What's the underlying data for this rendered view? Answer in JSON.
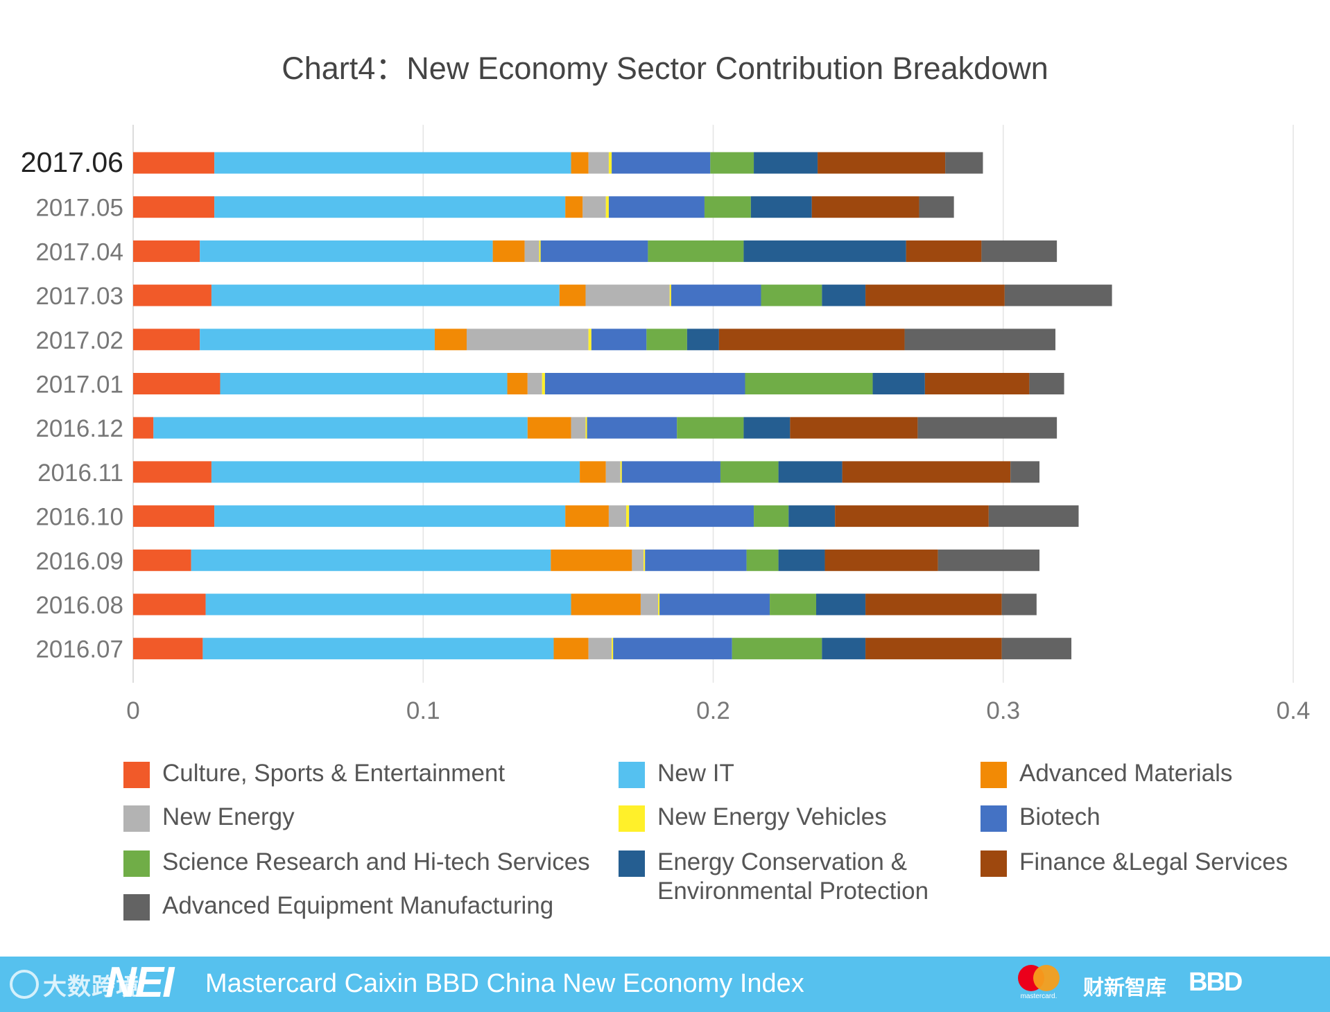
{
  "chart_data": {
    "type": "bar",
    "orientation": "horizontal",
    "stacked": true,
    "title": "Chart4：New Economy Sector Contribution Breakdown",
    "xlabel": "",
    "ylabel": "",
    "xlim": [
      0,
      0.4
    ],
    "x_ticks": [
      "0",
      "0.1",
      "0.2",
      "0.3",
      "0.4"
    ],
    "grid": "vertical",
    "legend_position": "bottom",
    "categories": [
      "2017.06",
      "2017.05",
      "2017.04",
      "2017.03",
      "2017.02",
      "2017.01",
      "2016.12",
      "2016.11",
      "2016.10",
      "2016.09",
      "2016.08",
      "2016.07"
    ],
    "series": [
      {
        "name": "Culture, Sports & Entertainment",
        "color": "#f15a29",
        "values": [
          0.028,
          0.028,
          0.023,
          0.027,
          0.023,
          0.03,
          0.007,
          0.027,
          0.028,
          0.02,
          0.025,
          0.024
        ]
      },
      {
        "name": "New IT",
        "color": "#55c1f0",
        "values": [
          0.123,
          0.121,
          0.101,
          0.12,
          0.081,
          0.099,
          0.129,
          0.127,
          0.121,
          0.124,
          0.126,
          0.121
        ]
      },
      {
        "name": "Advanced Materials",
        "color": "#f28a05",
        "values": [
          0.006,
          0.006,
          0.011,
          0.009,
          0.011,
          0.007,
          0.015,
          0.009,
          0.015,
          0.028,
          0.024,
          0.012
        ]
      },
      {
        "name": "New Energy",
        "color": "#b3b3b3",
        "values": [
          0.007,
          0.008,
          0.005,
          0.029,
          0.042,
          0.005,
          0.005,
          0.005,
          0.006,
          0.004,
          0.006,
          0.008
        ]
      },
      {
        "name": "New Energy Vehicles",
        "color": "#fff02a",
        "values": [
          0.001,
          0.001,
          0.0005,
          0.0005,
          0.001,
          0.001,
          0.0005,
          0.0005,
          0.001,
          0.0005,
          0.0005,
          0.0005
        ]
      },
      {
        "name": "Biotech",
        "color": "#4472c4",
        "values": [
          0.034,
          0.033,
          0.037,
          0.031,
          0.019,
          0.069,
          0.031,
          0.034,
          0.043,
          0.035,
          0.038,
          0.041
        ]
      },
      {
        "name": "Science Research and Hi-tech Services",
        "color": "#70ad47",
        "values": [
          0.015,
          0.016,
          0.033,
          0.021,
          0.014,
          0.044,
          0.023,
          0.02,
          0.012,
          0.011,
          0.016,
          0.031
        ]
      },
      {
        "name": "Energy Conservation & Environmental Protection",
        "color": "#255e91",
        "values": [
          0.022,
          0.021,
          0.056,
          0.015,
          0.011,
          0.018,
          0.016,
          0.022,
          0.016,
          0.016,
          0.017,
          0.015
        ]
      },
      {
        "name": "Finance &Legal Services",
        "color": "#9e480e",
        "values": [
          0.044,
          0.037,
          0.026,
          0.048,
          0.064,
          0.036,
          0.044,
          0.058,
          0.053,
          0.039,
          0.047,
          0.047
        ]
      },
      {
        "name": "Advanced Equipment Manufacturing",
        "color": "#636363",
        "values": [
          0.013,
          0.012,
          0.026,
          0.037,
          0.052,
          0.012,
          0.048,
          0.01,
          0.031,
          0.035,
          0.012,
          0.024
        ]
      }
    ]
  },
  "legend": [
    {
      "label": "Culture, Sports & Entertainment",
      "color": "#f15a29"
    },
    {
      "label": "New IT",
      "color": "#55c1f0"
    },
    {
      "label": "Advanced Materials",
      "color": "#f28a05"
    },
    {
      "label": "New Energy",
      "color": "#b3b3b3"
    },
    {
      "label": "New Energy Vehicles",
      "color": "#fff02a"
    },
    {
      "label": "Biotech",
      "color": "#4472c4"
    },
    {
      "label": "Science Research and Hi-tech Services",
      "color": "#70ad47"
    },
    {
      "label": "Energy Conservation &\nEnvironmental Protection",
      "color": "#255e91"
    },
    {
      "label": "Finance &Legal Services",
      "color": "#9e480e"
    },
    {
      "label": "Advanced Equipment Manufacturing",
      "color": "#636363"
    }
  ],
  "footer": {
    "left_logo_text": "大数跨境",
    "nei_logo": "NEI",
    "title": "Mastercard Caixin BBD China New Economy Index",
    "mastercard_label": "mastercard.",
    "caixin_logo": "财新智库",
    "bbd_logo": "BBD",
    "background": "#56c1ee"
  }
}
